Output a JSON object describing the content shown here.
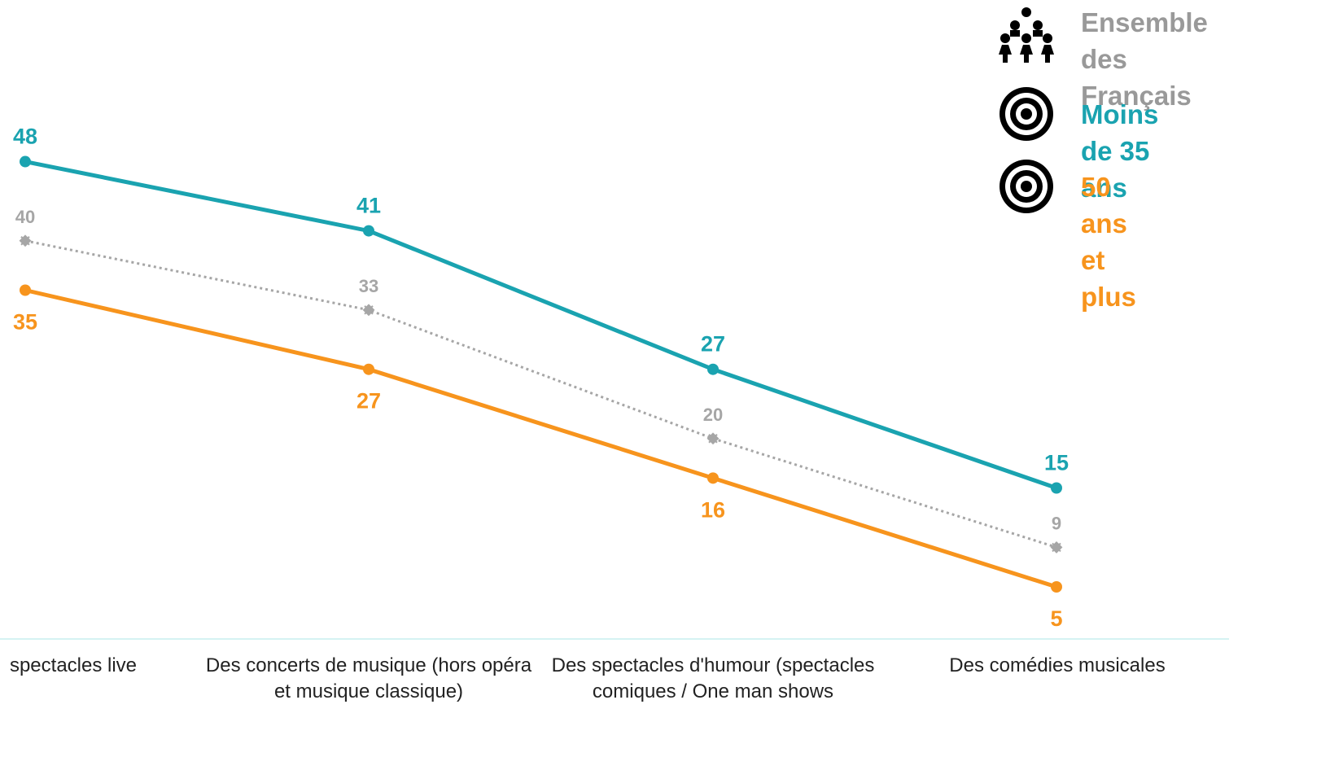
{
  "legend": {
    "items": [
      {
        "label": "Ensemble des\nFrançais",
        "icon": "people-group-icon",
        "color": "#999999"
      },
      {
        "label": "Moins de 35 ans",
        "icon": "target-icon",
        "color": "#1aa3b0"
      },
      {
        "label": "50 ans et plus",
        "icon": "target-icon",
        "color": "#f7941d"
      }
    ]
  },
  "chart_data": {
    "type": "line",
    "categories": [
      "spectacles live",
      "Des concerts de musique (hors opéra et musique classique)",
      "Des spectacles d'humour (spectacles comiques / One man shows",
      "Des comédies musicales"
    ],
    "series": [
      {
        "name": "Moins de 35 ans",
        "values": [
          48,
          41,
          27,
          15
        ],
        "color": "#1aa3b0",
        "style": "solid"
      },
      {
        "name": "Ensemble des Français",
        "values": [
          40,
          33,
          20,
          9
        ],
        "color": "#a6a6a6",
        "style": "dotted"
      },
      {
        "name": "50 ans et plus",
        "values": [
          35,
          27,
          16,
          5
        ],
        "color": "#f7941d",
        "style": "solid"
      }
    ],
    "axis_line_color": "#d5f3f3"
  }
}
